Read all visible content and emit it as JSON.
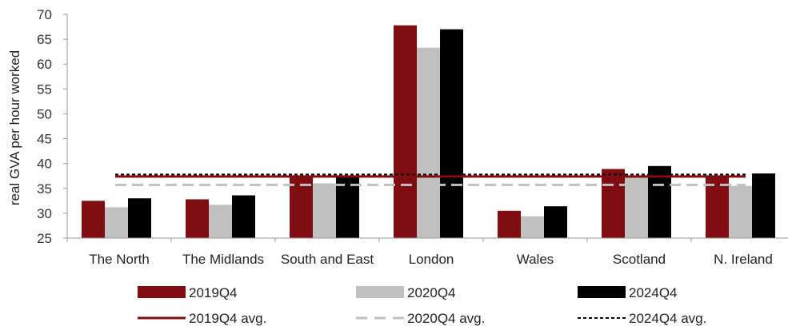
{
  "chart_data": {
    "type": "bar",
    "ylabel": "real GVA per hour worked",
    "ylim": [
      25,
      70
    ],
    "yticks": [
      25,
      30,
      35,
      40,
      45,
      50,
      55,
      60,
      65,
      70
    ],
    "grid": false,
    "legend_position": "bottom",
    "categories": [
      "The North",
      "The Midlands",
      "South and East",
      "London",
      "Wales",
      "Scotland",
      "N. Ireland"
    ],
    "series": [
      {
        "name": "2019Q4",
        "color": "#7f0d12",
        "values": [
          32.5,
          32.8,
          37.5,
          67.8,
          30.5,
          38.9,
          37.5
        ]
      },
      {
        "name": "2020Q4",
        "color": "#c0c0c0",
        "values": [
          31.2,
          31.7,
          36.0,
          63.3,
          29.4,
          37.4,
          35.5
        ]
      },
      {
        "name": "2024Q4",
        "color": "#000000",
        "values": [
          33.0,
          33.6,
          37.5,
          67.0,
          31.4,
          39.5,
          38.0
        ]
      }
    ],
    "averages": [
      {
        "name": "2019Q4 avg.",
        "value": 37.4,
        "color": "#7f0d12",
        "style": "solid"
      },
      {
        "name": "2020Q4 avg.",
        "value": 35.7,
        "color": "#c0c0c0",
        "style": "dashed"
      },
      {
        "name": "2024Q4 avg.",
        "value": 37.8,
        "color": "#000000",
        "style": "dotted"
      }
    ]
  }
}
